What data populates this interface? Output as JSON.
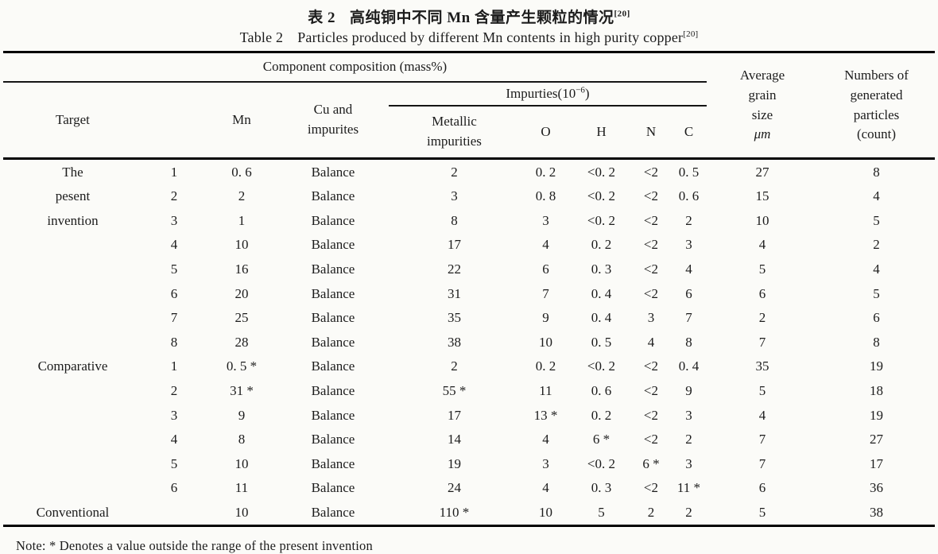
{
  "title": {
    "zh_label": "表 2",
    "zh_text": "高纯铜中不同 Mn 含量产生颗粒的情况",
    "zh_sup": "[20]",
    "en_label": "Table 2",
    "en_text": "Particles produced by different Mn contents in high purity copper",
    "en_sup": "[20]"
  },
  "header": {
    "component_composition": "Component composition (mass%)",
    "target": "Target",
    "no": "",
    "mn": "Mn",
    "cu_lines": [
      "Cu and",
      "impurites"
    ],
    "impurities_prefix": "Impurties(10",
    "impurities_sup": "−6",
    "impurities_suffix": ")",
    "metallic_lines": [
      "Metallic",
      "impurities"
    ],
    "o": "O",
    "h": "H",
    "n": "N",
    "c": "C",
    "grain_lines": [
      "Average",
      "grain",
      "size",
      "μm"
    ],
    "numbers_lines": [
      "Numbers of",
      "generated",
      "particles",
      "(count)"
    ]
  },
  "rows": [
    {
      "cells": [
        "The",
        "1",
        "0. 6",
        "Balance",
        "2",
        "0. 2",
        "<0. 2",
        "<2",
        "0. 5",
        "27",
        "8"
      ]
    },
    {
      "cells": [
        "pesent",
        "2",
        "2",
        "Balance",
        "3",
        "0. 8",
        "<0. 2",
        "<2",
        "0. 6",
        "15",
        "4"
      ]
    },
    {
      "cells": [
        "invention",
        "3",
        "1",
        "Balance",
        "8",
        "3",
        "<0. 2",
        "<2",
        "2",
        "10",
        "5"
      ]
    },
    {
      "cells": [
        "",
        "4",
        "10",
        "Balance",
        "17",
        "4",
        "0. 2",
        "<2",
        "3",
        "4",
        "2"
      ]
    },
    {
      "cells": [
        "",
        "5",
        "16",
        "Balance",
        "22",
        "6",
        "0. 3",
        "<2",
        "4",
        "5",
        "4"
      ]
    },
    {
      "cells": [
        "",
        "6",
        "20",
        "Balance",
        "31",
        "7",
        "0. 4",
        "<2",
        "6",
        "6",
        "5"
      ]
    },
    {
      "cells": [
        "",
        "7",
        "25",
        "Balance",
        "35",
        "9",
        "0. 4",
        "3",
        "7",
        "2",
        "6"
      ]
    },
    {
      "cells": [
        "",
        "8",
        "28",
        "Balance",
        "38",
        "10",
        "0. 5",
        "4",
        "8",
        "7",
        "8"
      ]
    },
    {
      "cells": [
        "Comparative",
        "1",
        "0. 5 *",
        "Balance",
        "2",
        "0. 2",
        "<0. 2",
        "<2",
        "0. 4",
        "35",
        "19"
      ]
    },
    {
      "cells": [
        "",
        "2",
        "31 *",
        "Balance",
        "55 *",
        "11",
        "0. 6",
        "<2",
        "9",
        "5",
        "18"
      ]
    },
    {
      "cells": [
        "",
        "3",
        "9",
        "Balance",
        "17",
        "13 *",
        "0. 2",
        "<2",
        "3",
        "4",
        "19"
      ]
    },
    {
      "cells": [
        "",
        "4",
        "8",
        "Balance",
        "14",
        "4",
        "6 *",
        "<2",
        "2",
        "7",
        "27"
      ]
    },
    {
      "cells": [
        "",
        "5",
        "10",
        "Balance",
        "19",
        "3",
        "<0. 2",
        "6 *",
        "3",
        "7",
        "17"
      ]
    },
    {
      "cells": [
        "",
        "6",
        "11",
        "Balance",
        "24",
        "4",
        "0. 3",
        "<2",
        "11 *",
        "6",
        "36"
      ]
    },
    {
      "cells": [
        "Conventional",
        "",
        "10",
        "Balance",
        "110 *",
        "10",
        "5",
        "2",
        "2",
        "5",
        "38"
      ]
    }
  ],
  "note": "Note: * Denotes a value outside the range of the present invention"
}
